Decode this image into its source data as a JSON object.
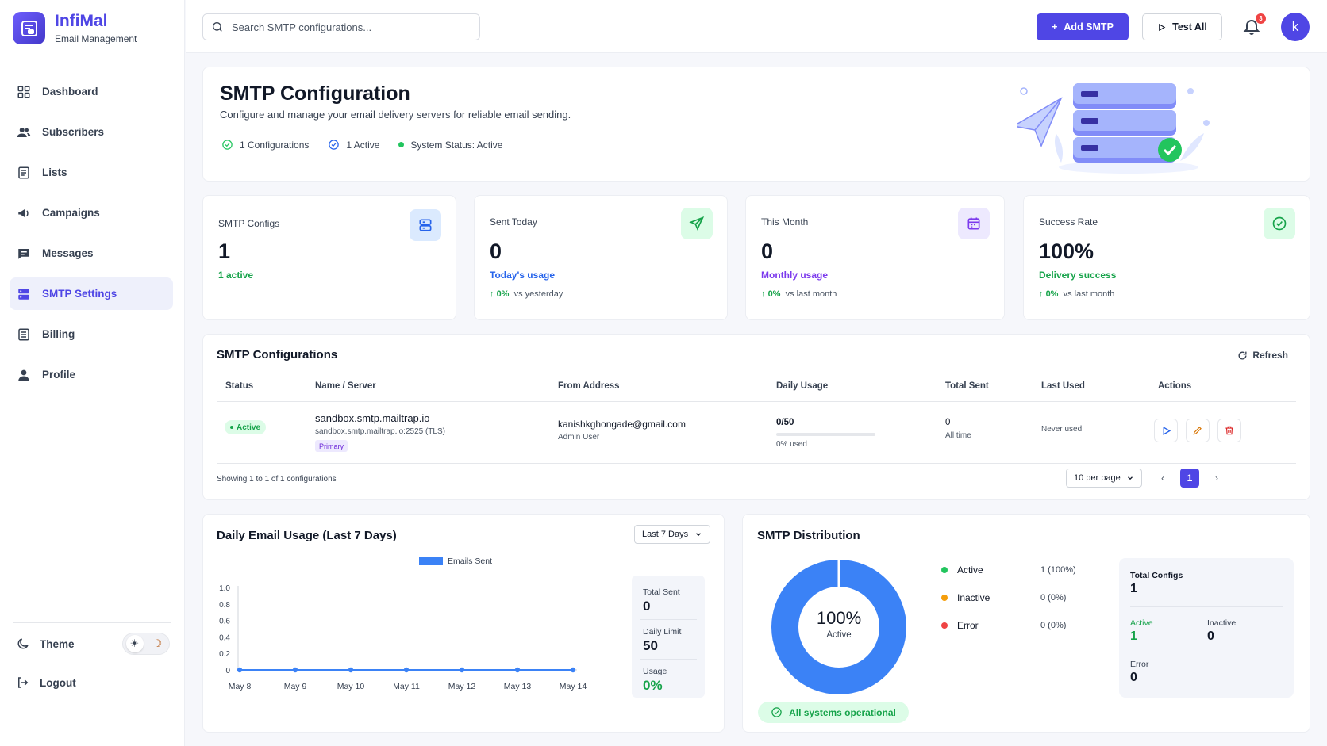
{
  "brand": {
    "name": "InfiMal",
    "subtitle": "Email Management"
  },
  "sidebar": {
    "items": [
      {
        "label": "Dashboard",
        "icon": "grid-icon"
      },
      {
        "label": "Subscribers",
        "icon": "users-icon"
      },
      {
        "label": "Lists",
        "icon": "list-icon"
      },
      {
        "label": "Campaigns",
        "icon": "megaphone-icon"
      },
      {
        "label": "Messages",
        "icon": "message-icon"
      },
      {
        "label": "SMTP Settings",
        "icon": "server-icon",
        "active": true
      },
      {
        "label": "Billing",
        "icon": "billing-icon"
      },
      {
        "label": "Profile",
        "icon": "user-icon"
      }
    ],
    "theme_label": "Theme",
    "logout_label": "Logout"
  },
  "header": {
    "search_placeholder": "Search SMTP configurations...",
    "add_label": "Add SMTP",
    "test_label": "Test All",
    "notif_count": "3",
    "avatar_letter": "k"
  },
  "hero": {
    "title": "SMTP Configuration",
    "description": "Configure and manage your email delivery servers for reliable email sending.",
    "stat_configs": "1 Configurations",
    "stat_active": "1 Active",
    "stat_status": "System Status: Active"
  },
  "stats": [
    {
      "label": "SMTP Configs",
      "value": "1",
      "sub": "1 active",
      "sub_color": "#16a34a"
    },
    {
      "label": "Sent Today",
      "value": "0",
      "sub": "Today's usage",
      "sub_color": "#2563eb",
      "trend_pct": "0%",
      "trend_text": "vs yesterday"
    },
    {
      "label": "This Month",
      "value": "0",
      "sub": "Monthly usage",
      "sub_color": "#7c3aed",
      "trend_pct": "0%",
      "trend_text": "vs last month"
    },
    {
      "label": "Success Rate",
      "value": "100%",
      "sub": "Delivery success",
      "sub_color": "#16a34a",
      "trend_pct": "0%",
      "trend_text": "vs last month"
    }
  ],
  "table": {
    "title": "SMTP Configurations",
    "refresh_label": "Refresh",
    "headers": [
      "Status",
      "Name / Server",
      "From Address",
      "Daily Usage",
      "Total Sent",
      "Last Used",
      "Actions"
    ],
    "row": {
      "status": "Active",
      "name": "sandbox.smtp.mailtrap.io",
      "server": "sandbox.smtp.mailtrap.io:2525 (TLS)",
      "tag": "Primary",
      "from_email": "kanishkghongade@gmail.com",
      "from_name": "Admin User",
      "usage": "0/50",
      "usage_pct_text": "0% used",
      "usage_fraction": 0,
      "total_sent": "0",
      "total_sent_sub": "All time",
      "last_used": "Never used"
    },
    "showing": "Showing 1 to 1 of 1 configurations",
    "per_page": "10 per page",
    "current_page": "1"
  },
  "usage_chart": {
    "title": "Daily Email Usage (Last 7 Days)",
    "range_label": "Last 7 Days",
    "side": {
      "total_sent_label": "Total Sent",
      "total_sent": "0",
      "daily_limit_label": "Daily Limit",
      "daily_limit": "50",
      "usage_label": "Usage",
      "usage": "0%"
    }
  },
  "chart_data": {
    "type": "line",
    "categories": [
      "May 8",
      "May 9",
      "May 10",
      "May 11",
      "May 12",
      "May 13",
      "May 14"
    ],
    "series": [
      {
        "name": "Emails Sent",
        "values": [
          0,
          0,
          0,
          0,
          0,
          0,
          0
        ],
        "color": "#3b82f6"
      }
    ],
    "yticks": [
      "0",
      "0.2",
      "0.4",
      "0.6",
      "0.8",
      "1.0"
    ],
    "ylim": [
      0,
      1
    ],
    "legend": "top"
  },
  "distribution": {
    "title": "SMTP Distribution",
    "center_value": "100%",
    "center_label": "Active",
    "legend": [
      {
        "label": "Active",
        "pct": "1 (100%)",
        "color": "#22c55e"
      },
      {
        "label": "Inactive",
        "pct": "0 (0%)",
        "color": "#f59e0b"
      },
      {
        "label": "Error",
        "pct": "0 (0%)",
        "color": "#ef4444"
      }
    ],
    "active_fraction": 1,
    "donut_color": "#3b82f6",
    "totals": {
      "total_label": "Total Configs",
      "total": "1",
      "active_label": "Active",
      "active": "1",
      "inactive_label": "Inactive",
      "inactive": "0",
      "error_label": "Error",
      "error": "0"
    },
    "ops_label": "All systems operational"
  }
}
